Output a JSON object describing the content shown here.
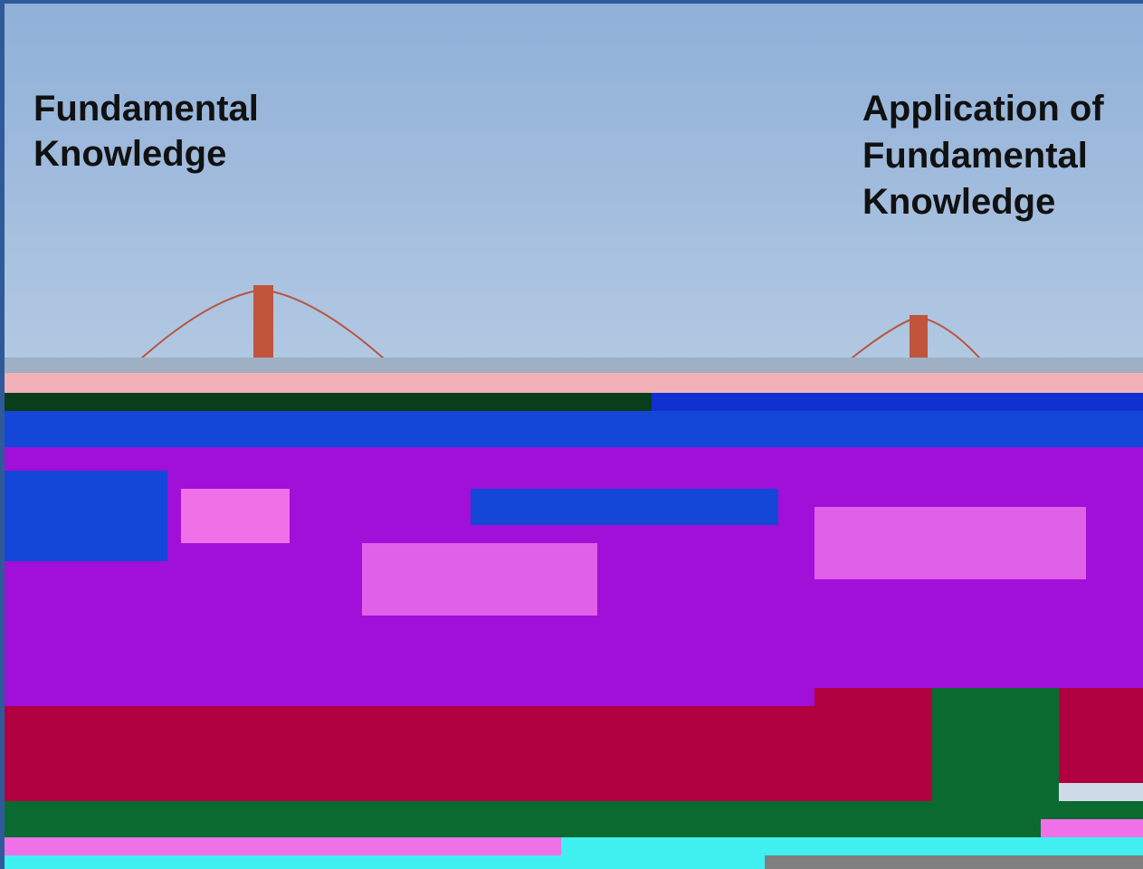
{
  "left_label": {
    "lines": [
      "Fundamental",
      "Knowledge"
    ]
  },
  "right_label": {
    "lines": [
      "Application of",
      "Fundamental",
      "Knowledge"
    ]
  }
}
